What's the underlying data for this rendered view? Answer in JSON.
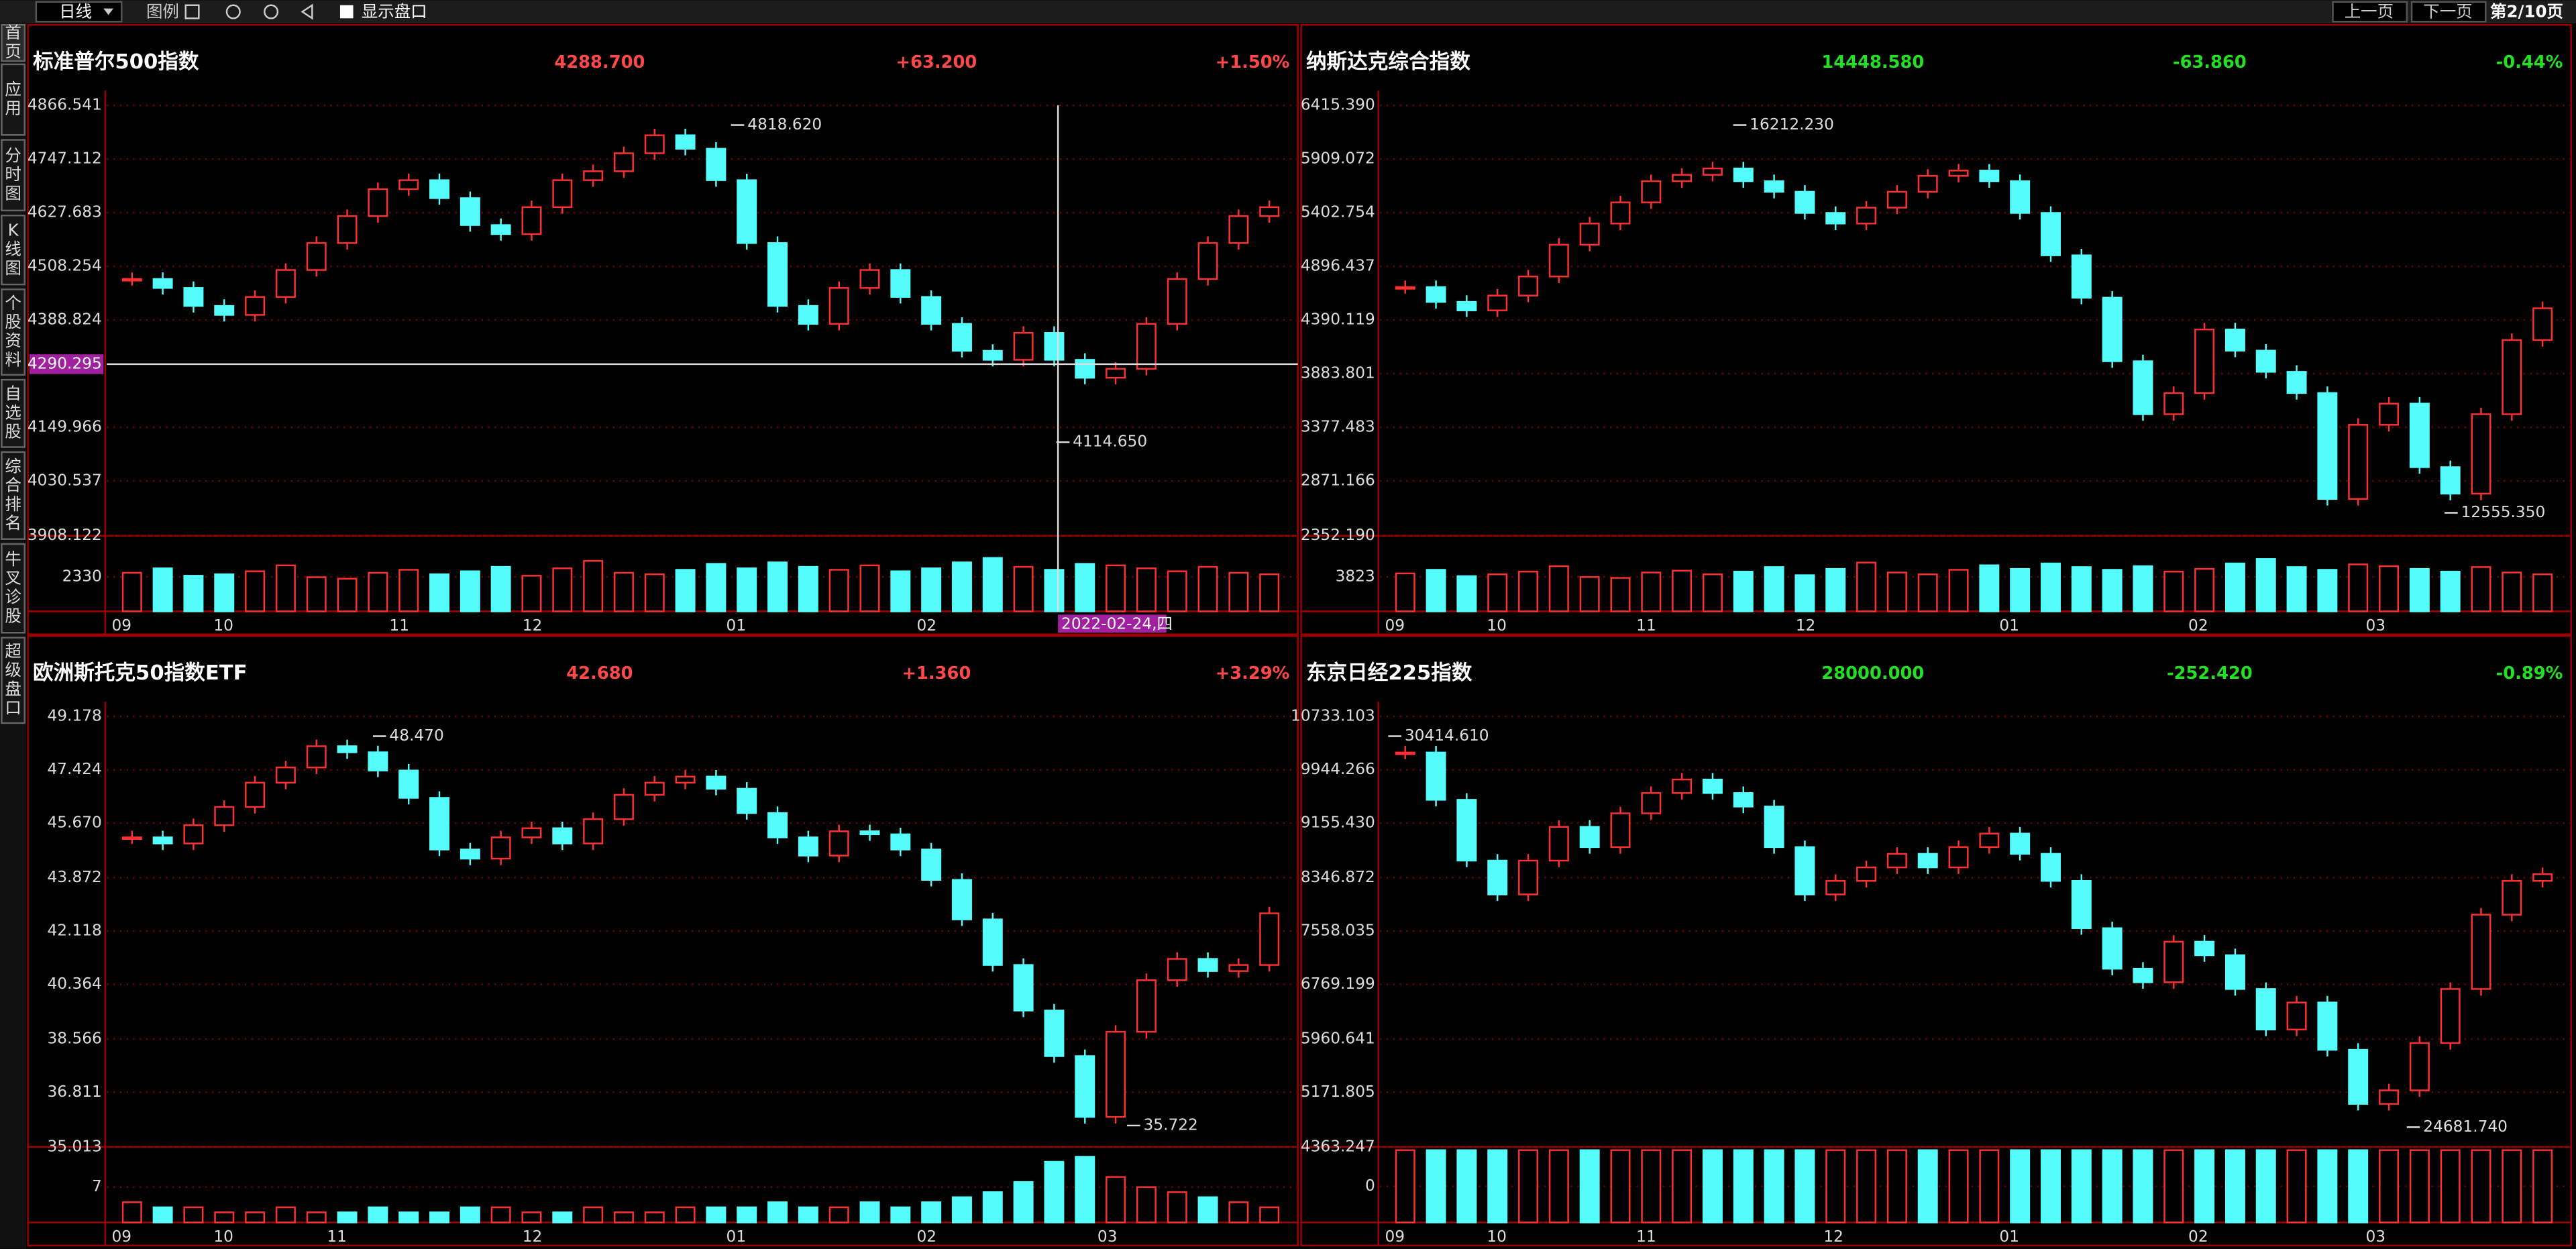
{
  "toolbar": {
    "period": "日线",
    "legend": "图例",
    "show_panel": "显示盘口",
    "prev": "上一页",
    "next": "下一页",
    "page": "第2/10页"
  },
  "sidebar": [
    "首页",
    "应用",
    "分时图",
    "K线图",
    "个股资料",
    "自选股",
    "综合排名",
    "牛叉诊股",
    "超级盘口"
  ],
  "panels": [
    {
      "title": "标准普尔500指数",
      "price": "4288.700",
      "change": "+63.200",
      "pct": "+1.50%",
      "color": "#ff4848",
      "ylim": [
        3908.122,
        4866.541
      ],
      "yticks": [
        3908.122,
        4030.537,
        4149.966,
        4388.824,
        4508.254,
        4627.683,
        4747.112,
        4866.541
      ],
      "closes": [
        4480,
        4460,
        4420,
        4400,
        4440,
        4500,
        4560,
        4620,
        4680,
        4700,
        4660,
        4600,
        4580,
        4640,
        4700,
        4720,
        4760,
        4800,
        4770,
        4700,
        4560,
        4420,
        4380,
        4460,
        4500,
        4440,
        4380,
        4320,
        4300,
        4360,
        4300,
        4260,
        4280,
        4380,
        4480,
        4560,
        4620,
        4640
      ],
      "volumes": [
        2600,
        2900,
        2400,
        2500,
        2700,
        3100,
        2300,
        2200,
        2600,
        2800,
        2500,
        2700,
        3000,
        2400,
        2900,
        3400,
        2600,
        2500,
        2800,
        3200,
        2900,
        3300,
        3000,
        2800,
        3100,
        2700,
        2900,
        3300,
        3600,
        3000,
        2800,
        3200,
        3100,
        2900,
        2700,
        3000,
        2600,
        2500
      ],
      "vlim": [
        0,
        4870
      ],
      "vticks": [
        2330
      ],
      "months": [
        "09",
        "10",
        "11",
        "12",
        "01",
        "02",
        "03"
      ],
      "annotations": [
        "4818.620",
        "4114.650"
      ],
      "cursor": {
        "value": 4290.295,
        "date": "2022-02-24,四"
      }
    },
    {
      "title": "纳斯达克综合指数",
      "price": "14448.580",
      "change": "-63.860",
      "pct": "-0.44%",
      "color": "#22e022",
      "ylim": [
        2352.19,
        6415.39
      ],
      "yticks": [
        {
          "value": 2352.19,
          "label": "2352.190"
        },
        2871.166,
        3377.483,
        3883.801,
        4390.119,
        4896.437,
        5402.754,
        5909.072,
        {
          "value": 6415.39,
          "label": "6415.390"
        }
      ],
      "closes": [
        4700,
        4560,
        4480,
        4620,
        4800,
        5100,
        5300,
        5500,
        5700,
        5760,
        5820,
        5700,
        5600,
        5400,
        5300,
        5450,
        5600,
        5750,
        5800,
        5700,
        5400,
        5000,
        4600,
        4000,
        3500,
        3700,
        4300,
        4100,
        3900,
        3700,
        2700,
        3400,
        3600,
        3000,
        2750,
        3500,
        4200,
        4500
      ],
      "volumes": [
        4200,
        4600,
        3900,
        4100,
        4400,
        5000,
        3800,
        3700,
        4300,
        4500,
        4100,
        4400,
        4900,
        4000,
        4700,
        5400,
        4300,
        4100,
        4600,
        5100,
        4700,
        5300,
        4900,
        4600,
        5000,
        4400,
        4700,
        5300,
        5800,
        4900,
        4600,
        5200,
        5000,
        4700,
        4400,
        4900,
        4300,
        4100
      ],
      "vlim": [
        0,
        8000
      ],
      "vticks": [
        3823
      ],
      "months": [
        "09",
        "10",
        "11",
        "12",
        "01",
        "02",
        "03"
      ],
      "annotations": [
        "16212.230",
        "12555.350"
      ]
    },
    {
      "title": "欧洲斯托克50指数ETF",
      "price": "42.680",
      "change": "+1.360",
      "pct": "+3.29%",
      "color": "#ff4848",
      "ylim": [
        35.013,
        49.178
      ],
      "yticks": [
        35.013,
        36.811,
        38.566,
        40.364,
        42.118,
        43.872,
        {
          "value": 45.67,
          "label": "45.670"
        },
        47.424,
        49.178
      ],
      "closes": [
        45.2,
        45.0,
        45.6,
        46.2,
        47.0,
        47.5,
        48.2,
        48.0,
        47.4,
        46.5,
        44.8,
        44.5,
        45.2,
        45.5,
        45.0,
        45.8,
        46.6,
        47.0,
        47.2,
        46.8,
        46.0,
        45.2,
        44.6,
        45.4,
        45.3,
        44.8,
        43.8,
        42.5,
        41.0,
        39.5,
        38.0,
        36.0,
        38.8,
        40.5,
        41.2,
        40.8,
        41.0,
        42.7
      ],
      "volumes": [
        4,
        3,
        3,
        2,
        2,
        3,
        2,
        2,
        3,
        2,
        2,
        3,
        3,
        2,
        2,
        3,
        2,
        2,
        3,
        3,
        3,
        4,
        3,
        3,
        4,
        3,
        4,
        5,
        6,
        8,
        12,
        13,
        9,
        7,
        6,
        5,
        4,
        3
      ],
      "vlim": [
        0,
        14.3
      ],
      "vticks": [
        7
      ],
      "months": [
        "09",
        "10",
        "11",
        "12",
        "01",
        "02",
        "03"
      ],
      "annotations": [
        "48.470",
        "35.722"
      ]
    },
    {
      "title": "东京日经225指数",
      "price": "28000.000",
      "change": "-252.420",
      "pct": "-0.89%",
      "color": "#22e022",
      "ylim": [
        4363.247,
        10733.103
      ],
      "yticks": [
        4363.247,
        5171.805,
        5960.641,
        6769.199,
        7558.035,
        8346.872,
        {
          "value": 9155.43,
          "label": "9155.430"
        },
        9944.266,
        10733.103
      ],
      "closes": [
        10200,
        9500,
        8600,
        8100,
        8600,
        9100,
        8800,
        9300,
        9600,
        9800,
        9600,
        9400,
        8800,
        8100,
        8300,
        8500,
        8700,
        8500,
        8800,
        9000,
        8700,
        8300,
        7600,
        7000,
        6800,
        7400,
        7200,
        6700,
        6100,
        6500,
        5800,
        5000,
        5200,
        5900,
        6700,
        7800,
        8300,
        8400
      ],
      "volumes": [
        20,
        20,
        20,
        20,
        20,
        20,
        20,
        20,
        20,
        20,
        20,
        20,
        20,
        20,
        20,
        20,
        20,
        20,
        20,
        20,
        20,
        20,
        20,
        20,
        20,
        20,
        20,
        20,
        20,
        20,
        20,
        20,
        20,
        20,
        20,
        20,
        20,
        20
      ],
      "vlim": [
        -20,
        20
      ],
      "vticks": [
        0
      ],
      "months": [
        "09",
        "10",
        "11",
        "12",
        "01",
        "02",
        "03"
      ],
      "annotations": [
        "30414.610",
        "24681.740"
      ]
    }
  ]
}
